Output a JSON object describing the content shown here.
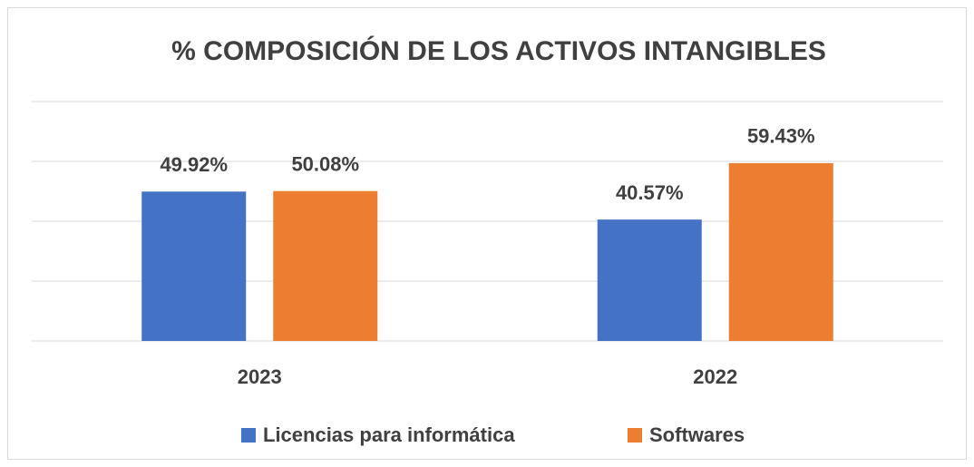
{
  "chart_data": {
    "type": "bar",
    "title": "% COMPOSICIÓN DE LOS ACTIVOS INTANGIBLES",
    "categories": [
      "2023",
      "2022"
    ],
    "series": [
      {
        "name": "Licencias para informática",
        "color": "#4472c4",
        "values": [
          49.92,
          40.57
        ],
        "value_labels": [
          "49.92%",
          "40.57%"
        ]
      },
      {
        "name": "Softwares",
        "color": "#ed7d31",
        "values": [
          50.08,
          59.43
        ],
        "value_labels": [
          "50.08%",
          "59.43%"
        ]
      }
    ],
    "ylim": [
      0,
      80
    ],
    "yticks": [
      0,
      20,
      40,
      60,
      80
    ],
    "grid": true,
    "legend": "bottom"
  }
}
